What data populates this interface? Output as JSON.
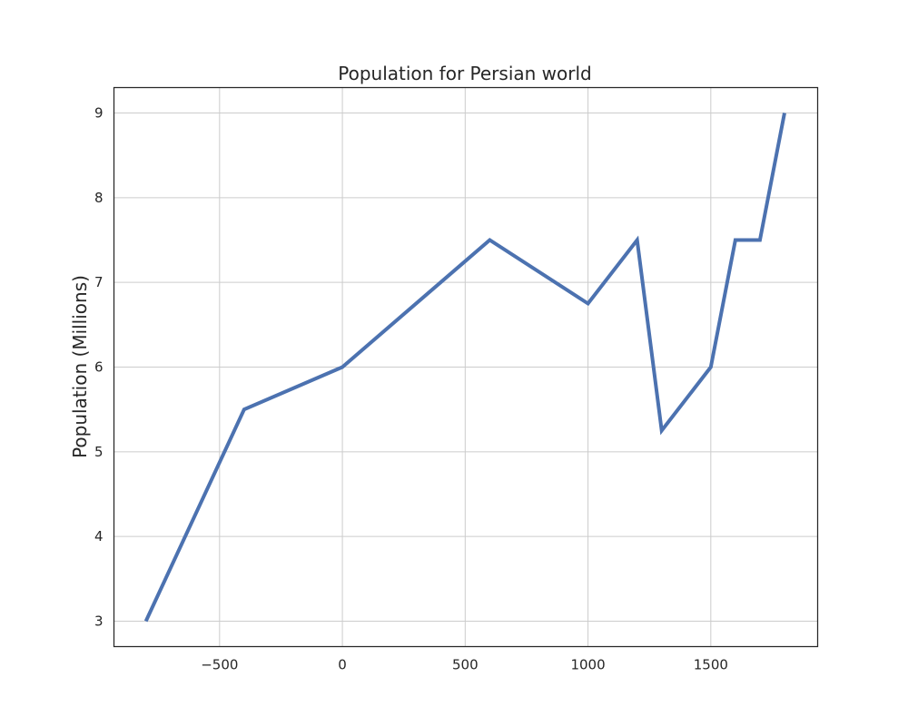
{
  "chart_data": {
    "type": "line",
    "title": "Population for Persian world",
    "xlabel": "",
    "ylabel": "Population (Millions)",
    "xlim": [
      -930,
      1935
    ],
    "ylim": [
      2.7,
      9.3
    ],
    "xticks": [
      -500,
      0,
      500,
      1000,
      1500
    ],
    "xtick_labels": [
      "−500",
      "0",
      "500",
      "1000",
      "1500"
    ],
    "yticks": [
      3,
      4,
      5,
      6,
      7,
      8,
      9
    ],
    "ytick_labels": [
      "3",
      "4",
      "5",
      "6",
      "7",
      "8",
      "9"
    ],
    "grid": true,
    "series": [
      {
        "color": "#4c72b0",
        "x": [
          -800,
          -400,
          0,
          600,
          1000,
          1200,
          1300,
          1500,
          1600,
          1700,
          1800
        ],
        "y": [
          3,
          5.5,
          6,
          7.5,
          6.75,
          7.5,
          5.25,
          6,
          7.5,
          7.5,
          9
        ]
      }
    ]
  }
}
